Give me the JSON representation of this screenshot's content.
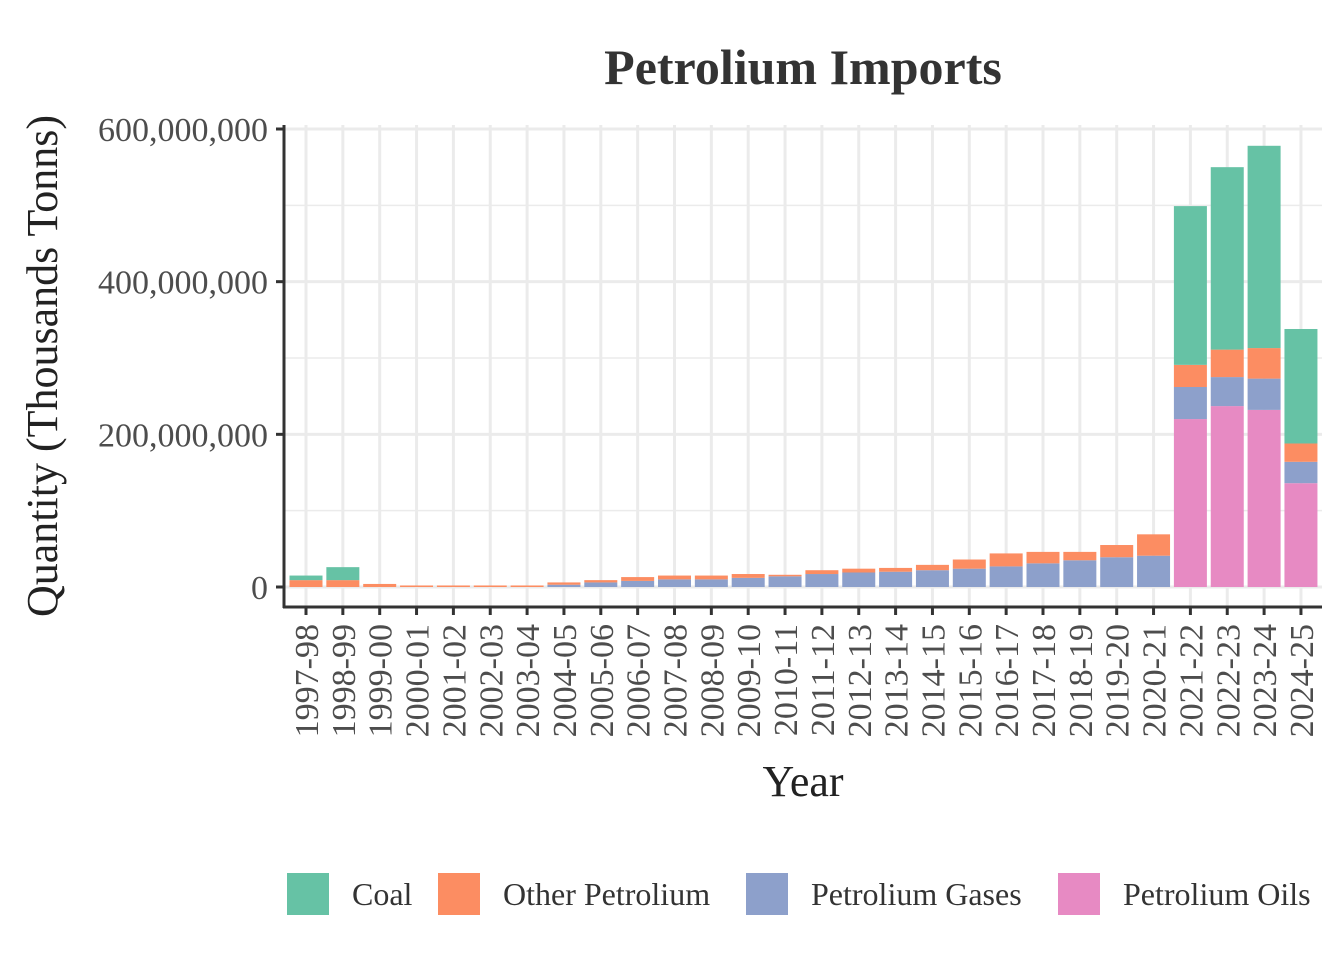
{
  "chart_data": {
    "type": "bar",
    "stacked": true,
    "title": "Petrolium Imports",
    "xlabel": "Year",
    "ylabel": "Quantity (Thousands Tonns)",
    "ylim": [
      0,
      600000000
    ],
    "yticks": [
      0,
      200000000,
      400000000,
      600000000
    ],
    "ytick_labels": [
      "0",
      "200,000,000",
      "400,000,000",
      "600,000,000"
    ],
    "grid": true,
    "legend_position": "bottom",
    "categories": [
      "1997-98",
      "1998-99",
      "1999-00",
      "2000-01",
      "2001-02",
      "2002-03",
      "2003-04",
      "2004-05",
      "2005-06",
      "2006-07",
      "2007-08",
      "2008-09",
      "2009-10",
      "2010-11",
      "2011-12",
      "2012-13",
      "2013-14",
      "2014-15",
      "2015-16",
      "2016-17",
      "2017-18",
      "2018-19",
      "2019-20",
      "2020-21",
      "2021-22",
      "2022-23",
      "2023-24",
      "2024-25"
    ],
    "series": [
      {
        "name": "Petrolium Oils",
        "color": "#e78ac3",
        "values": [
          0,
          0,
          0,
          0,
          0,
          0,
          0,
          0,
          0,
          0,
          0,
          0,
          0,
          0,
          0,
          0,
          0,
          0,
          0,
          0,
          0,
          0,
          0,
          0,
          220000000,
          237000000,
          232000000,
          136000000
        ]
      },
      {
        "name": "Petrolium Gases",
        "color": "#8da0cb",
        "values": [
          0,
          0,
          0,
          0,
          0,
          0,
          0,
          3000000,
          6000000,
          8000000,
          10000000,
          10000000,
          12000000,
          14000000,
          17000000,
          19000000,
          20000000,
          22000000,
          24000000,
          27000000,
          31000000,
          35000000,
          39000000,
          41000000,
          42000000,
          38000000,
          41000000,
          28000000
        ]
      },
      {
        "name": "Other Petrolium",
        "color": "#fc8d62",
        "values": [
          9000000,
          9000000,
          4000000,
          2000000,
          2000000,
          2000000,
          2000000,
          3000000,
          3000000,
          5000000,
          5000000,
          5000000,
          5000000,
          2000000,
          5000000,
          5000000,
          5000000,
          7000000,
          12000000,
          17000000,
          15000000,
          11000000,
          16000000,
          28000000,
          29000000,
          36000000,
          40000000,
          24000000
        ]
      },
      {
        "name": "Coal",
        "color": "#66c2a5",
        "values": [
          6000000,
          17000000,
          0,
          0,
          0,
          0,
          0,
          0,
          0,
          0,
          0,
          0,
          0,
          0,
          0,
          0,
          0,
          0,
          0,
          0,
          0,
          0,
          0,
          0,
          208000000,
          239000000,
          265000000,
          150000000
        ]
      }
    ],
    "legend": [
      {
        "name": "Coal",
        "color": "#66c2a5"
      },
      {
        "name": "Other Petrolium",
        "color": "#fc8d62"
      },
      {
        "name": "Petrolium Gases",
        "color": "#8da0cb"
      },
      {
        "name": "Petrolium Oils",
        "color": "#e78ac3"
      }
    ]
  }
}
